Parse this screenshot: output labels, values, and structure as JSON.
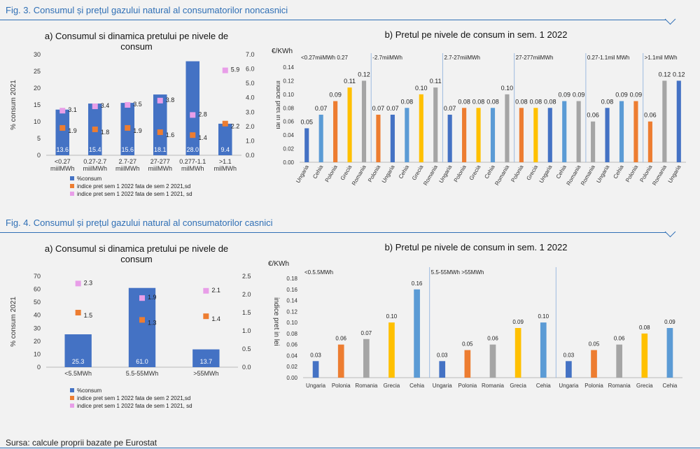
{
  "fig3": {
    "title": "Fig. 3. Consumul și prețul gazului natural al consumatorilor noncasnici",
    "a": {
      "title_line1": "a) Consumul si dinamica pretului    pe nivele de",
      "title_line2": "consum",
      "ylabel_left": "% consum 2021",
      "ylabel_right": "indice pret in lei",
      "categories": [
        [
          "<0.27",
          "miilMWh"
        ],
        [
          "0.27-2.7",
          "miilMWh"
        ],
        [
          "2.7-27",
          "miilMWh"
        ],
        [
          "27-277",
          "miilMWh"
        ],
        [
          "0.277-1.1",
          "milMWh"
        ],
        [
          ">1.1",
          "milMWh"
        ]
      ],
      "bars": [
        13.6,
        15.4,
        15.6,
        18.1,
        28.0,
        9.4
      ],
      "bar_labels": [
        "13.6",
        "15.4",
        "15.6",
        "18.1",
        "28.0",
        "9.4"
      ],
      "orange": [
        1.9,
        1.8,
        1.9,
        1.6,
        1.4,
        2.2
      ],
      "pink": [
        3.1,
        3.4,
        3.5,
        3.8,
        2.8,
        5.9
      ],
      "left_ticks": [
        "0",
        "5",
        "10",
        "15",
        "20",
        "25",
        "30"
      ],
      "right_ticks": [
        "0.0",
        "1.0",
        "2.0",
        "3.0",
        "4.0",
        "5.0",
        "6.0",
        "7.0"
      ],
      "ylim_left": [
        0,
        30
      ],
      "ylim_right": [
        0,
        7
      ],
      "legend": [
        "%consum",
        "indice pret sem 1 2022 fata de sem 2 2021,sd",
        "indice pret sem 1 2022 fata de sem 1 2021, sd"
      ]
    },
    "b": {
      "title": "b) Pretul pe nivele de consum in sem. 1 2022",
      "unit": "€/KWh",
      "ticks": [
        "0.00",
        "0.02",
        "0.04",
        "0.06",
        "0.08",
        "0.10",
        "0.12",
        "0.14"
      ],
      "ylim": [
        0,
        0.14
      ],
      "groups": [
        {
          "label": "<0.27miiMWh 0.27",
          "items": [
            [
              "Ungaria",
              0.05,
              "#4472c4"
            ],
            [
              "Cehia",
              0.07,
              "#5b9bd5"
            ],
            [
              "Polonia",
              0.09,
              "#ed7d31"
            ],
            [
              "Grecia",
              0.11,
              "#ffc000"
            ],
            [
              "Romania",
              0.12,
              "#a5a5a5"
            ]
          ]
        },
        {
          "label": "-2.7miiMWh",
          "items": [
            [
              "Polonia",
              0.07,
              "#ed7d31"
            ],
            [
              "Ungaria",
              0.07,
              "#4472c4"
            ],
            [
              "Cehia",
              0.08,
              "#5b9bd5"
            ],
            [
              "Grecia",
              0.1,
              "#ffc000"
            ],
            [
              "Romania",
              0.11,
              "#a5a5a5"
            ]
          ]
        },
        {
          "label": "2.7-27miiMWh",
          "items": [
            [
              "Ungaria",
              0.07,
              "#4472c4"
            ],
            [
              "Polonia",
              0.08,
              "#ed7d31"
            ],
            [
              "Grecia",
              0.08,
              "#ffc000"
            ],
            [
              "Cehia",
              0.08,
              "#5b9bd5"
            ],
            [
              "Romania",
              0.1,
              "#a5a5a5"
            ]
          ]
        },
        {
          "label": "27-277miiMWh",
          "items": [
            [
              "Polonia",
              0.08,
              "#ed7d31"
            ],
            [
              "Grecia",
              0.08,
              "#ffc000"
            ],
            [
              "Ungaria",
              0.08,
              "#4472c4"
            ],
            [
              "Cehia",
              0.09,
              "#5b9bd5"
            ],
            [
              "Romania",
              0.09,
              "#a5a5a5"
            ]
          ]
        },
        {
          "label": "0.27-1.1mil MWh",
          "items": [
            [
              "Romania",
              0.06,
              "#a5a5a5"
            ],
            [
              "Ungaria",
              0.08,
              "#4472c4"
            ],
            [
              "Cehia",
              0.09,
              "#5b9bd5"
            ],
            [
              "Polonia",
              0.09,
              "#ed7d31"
            ]
          ]
        },
        {
          "label": ">1.1mil MWh",
          "items": [
            [
              "Polonia",
              0.06,
              "#ed7d31"
            ],
            [
              "Romania",
              0.12,
              "#a5a5a5"
            ],
            [
              "Ungaria",
              0.12,
              "#4472c4"
            ]
          ]
        }
      ]
    }
  },
  "fig4": {
    "title": "Fig. 4. Consumul și prețul gazului natural al consumatorilor casnici",
    "a": {
      "title_line1": "a) Consumul si dinamica pretului    pe nivele de",
      "title_line2": "consum",
      "ylabel_left": "% consum 2021",
      "ylabel_right": "indice pret in lei",
      "categories": [
        "<5.5MWh",
        "5.5-55MWh",
        ">55MWh"
      ],
      "bars": [
        25.3,
        61.0,
        13.7
      ],
      "bar_labels": [
        "25.3",
        "61.0",
        "13.7"
      ],
      "orange": [
        1.5,
        1.3,
        1.4
      ],
      "pink": [
        2.3,
        1.9,
        2.1
      ],
      "left_ticks": [
        "0",
        "10",
        "20",
        "30",
        "40",
        "50",
        "60",
        "70"
      ],
      "right_ticks": [
        "0.0",
        "0.5",
        "1.0",
        "1.5",
        "2.0",
        "2.5"
      ],
      "ylim_left": [
        0,
        70
      ],
      "ylim_right": [
        0,
        2.5
      ],
      "legend": [
        "%consum",
        "indice pret sem 1 2022 fata de sem 2 2021,sd",
        "indice pret sem 1 2022 fata de sem 1 2021, sd"
      ]
    },
    "b": {
      "title": "b) Pretul pe nivele de consum in sem. 1 2022",
      "unit": "€/KWh",
      "ticks": [
        "0.00",
        "0.02",
        "0.04",
        "0.06",
        "0.08",
        "0.10",
        "0.12",
        "0.14",
        "0.16",
        "0.18"
      ],
      "ylim": [
        0,
        0.18
      ],
      "groups": [
        {
          "label": "<0.5.5MWh",
          "items": [
            [
              "Ungaria",
              0.03,
              "#4472c4"
            ],
            [
              "Polonia",
              0.06,
              "#ed7d31"
            ],
            [
              "Romania",
              0.07,
              "#a5a5a5"
            ],
            [
              "Grecia",
              0.1,
              "#ffc000"
            ],
            [
              "Cehia",
              0.16,
              "#5b9bd5"
            ]
          ]
        },
        {
          "label": "5.5-55MWh >55MWh",
          "items": [
            [
              "Ungaria",
              0.03,
              "#4472c4"
            ],
            [
              "Polonia",
              0.05,
              "#ed7d31"
            ],
            [
              "Romania",
              0.06,
              "#a5a5a5"
            ],
            [
              "Grecia",
              0.09,
              "#ffc000"
            ],
            [
              "Cehia",
              0.1,
              "#5b9bd5"
            ]
          ]
        },
        {
          "label": "",
          "items": [
            [
              "Ungaria",
              0.03,
              "#4472c4"
            ],
            [
              "Polonia",
              0.05,
              "#ed7d31"
            ],
            [
              "Romania",
              0.06,
              "#a5a5a5"
            ],
            [
              "Grecia",
              0.08,
              "#ffc000"
            ],
            [
              "Cehia",
              0.09,
              "#5b9bd5"
            ]
          ]
        }
      ]
    }
  },
  "source": "Sursa: calcule proprii bazate pe Eurostat",
  "colors": {
    "accent": "#2f6fb5",
    "bar": "#4472c4",
    "orange": "#ed7d31",
    "pink": "#e89ee8"
  }
}
